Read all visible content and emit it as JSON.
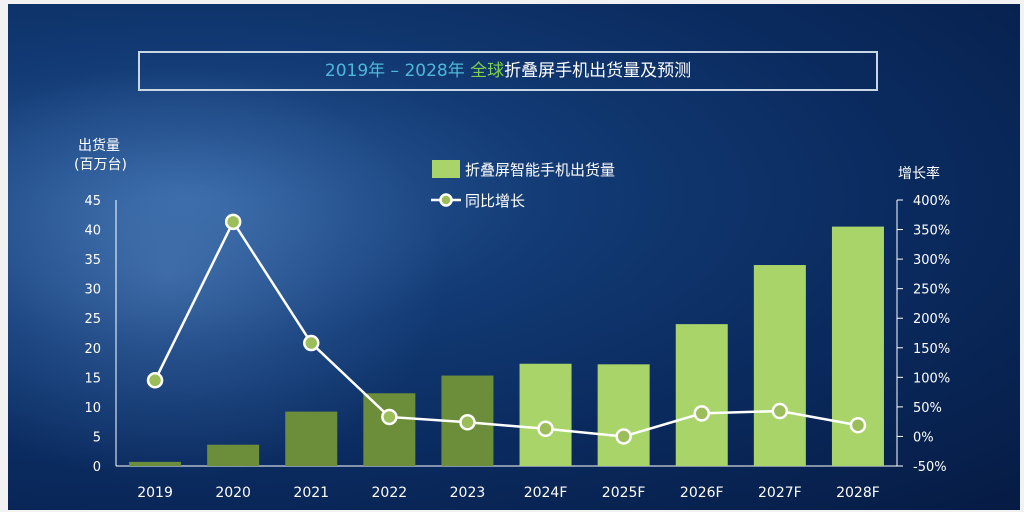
{
  "title": {
    "years": "2019年 – 2028年",
    "global": "全球",
    "rest": "折叠屏手机出货量及预测"
  },
  "chart_data": {
    "type": "bar+line",
    "categories": [
      "2019",
      "2020",
      "2021",
      "2022",
      "2023",
      "2024F",
      "2025F",
      "2026F",
      "2027F",
      "2028F"
    ],
    "series": [
      {
        "name": "折叠屏智能手机出货量",
        "type": "bar",
        "axis": "left",
        "values": [
          0.7,
          3.6,
          9.2,
          12.3,
          15.3,
          17.3,
          17.2,
          24.0,
          34.0,
          40.5
        ],
        "colors": [
          "#6c8e3a",
          "#6c8e3a",
          "#6c8e3a",
          "#6c8e3a",
          "#6c8e3a",
          "#a8d46a",
          "#a8d46a",
          "#a8d46a",
          "#a8d46a",
          "#a8d46a"
        ]
      },
      {
        "name": "同比增长",
        "type": "line",
        "axis": "right",
        "values": [
          95,
          363,
          158,
          33,
          24,
          13,
          0,
          39,
          43,
          19
        ],
        "color": "#ffffff",
        "marker_fill": "#9bbd5a"
      }
    ],
    "left_axis": {
      "label_line1": "出货量",
      "label_line2": "(百万台)",
      "ylim": [
        0,
        45
      ],
      "ticks": [
        "0",
        "5",
        "10",
        "15",
        "20",
        "25",
        "30",
        "35",
        "40",
        "45"
      ]
    },
    "right_axis": {
      "label": "增长率",
      "ylim": [
        -50,
        400
      ],
      "ticks": [
        "-50%",
        "0%",
        "50%",
        "100%",
        "150%",
        "200%",
        "250%",
        "300%",
        "350%",
        "400%"
      ]
    },
    "legend_position": "top-center"
  }
}
